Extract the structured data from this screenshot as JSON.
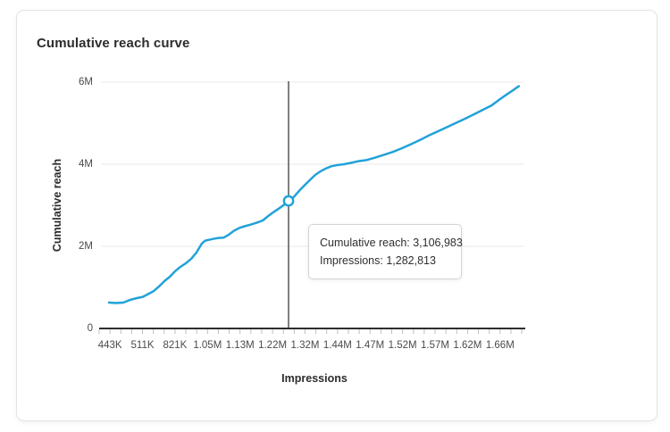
{
  "card": {
    "title": "Cumulative reach curve"
  },
  "chart_data": {
    "type": "line",
    "title": "Cumulative reach curve",
    "xlabel": "Impressions",
    "ylabel": "Cumulative reach",
    "x_tick_labels": [
      "443K",
      "511K",
      "821K",
      "1.05M",
      "1.13M",
      "1.22M",
      "1.32M",
      "1.44M",
      "1.47M",
      "1.52M",
      "1.57M",
      "1.62M",
      "1.66M"
    ],
    "y_tick_labels": [
      "0",
      "2M",
      "4M",
      "6M"
    ],
    "y_tick_values_M": [
      0,
      2,
      4,
      6
    ],
    "ylim_M": [
      0,
      6
    ],
    "grid": true,
    "series": [
      {
        "name": "Cumulative reach",
        "values_at_labels_M": [
          0.63,
          0.77,
          1.43,
          2.17,
          2.48,
          2.92,
          3.62,
          4.0,
          4.17,
          4.5,
          4.87,
          5.27,
          5.76
        ],
        "curve_points_frac_reachM": [
          [
            0.019,
            0.63
          ],
          [
            0.036,
            0.62
          ],
          [
            0.053,
            0.63
          ],
          [
            0.07,
            0.7
          ],
          [
            0.085,
            0.74
          ],
          [
            0.099,
            0.77
          ],
          [
            0.112,
            0.84
          ],
          [
            0.125,
            0.91
          ],
          [
            0.137,
            1.02
          ],
          [
            0.15,
            1.15
          ],
          [
            0.163,
            1.26
          ],
          [
            0.175,
            1.39
          ],
          [
            0.188,
            1.5
          ],
          [
            0.201,
            1.59
          ],
          [
            0.214,
            1.7
          ],
          [
            0.226,
            1.85
          ],
          [
            0.239,
            2.07
          ],
          [
            0.247,
            2.14
          ],
          [
            0.26,
            2.17
          ],
          [
            0.275,
            2.2
          ],
          [
            0.29,
            2.21
          ],
          [
            0.302,
            2.28
          ],
          [
            0.315,
            2.38
          ],
          [
            0.328,
            2.45
          ],
          [
            0.34,
            2.49
          ],
          [
            0.355,
            2.53
          ],
          [
            0.37,
            2.58
          ],
          [
            0.383,
            2.63
          ],
          [
            0.395,
            2.73
          ],
          [
            0.408,
            2.83
          ],
          [
            0.421,
            2.92
          ],
          [
            0.433,
            3.01
          ],
          [
            0.444,
            3.09
          ],
          [
            0.457,
            3.21
          ],
          [
            0.469,
            3.35
          ],
          [
            0.482,
            3.49
          ],
          [
            0.495,
            3.62
          ],
          [
            0.507,
            3.74
          ],
          [
            0.52,
            3.83
          ],
          [
            0.533,
            3.9
          ],
          [
            0.545,
            3.95
          ],
          [
            0.56,
            3.98
          ],
          [
            0.575,
            4.0
          ],
          [
            0.59,
            4.03
          ],
          [
            0.607,
            4.07
          ],
          [
            0.628,
            4.1
          ],
          [
            0.649,
            4.16
          ],
          [
            0.67,
            4.23
          ],
          [
            0.691,
            4.3
          ],
          [
            0.712,
            4.39
          ],
          [
            0.734,
            4.49
          ],
          [
            0.755,
            4.59
          ],
          [
            0.776,
            4.7
          ],
          [
            0.797,
            4.8
          ],
          [
            0.818,
            4.9
          ],
          [
            0.839,
            5.0
          ],
          [
            0.86,
            5.1
          ],
          [
            0.882,
            5.21
          ],
          [
            0.903,
            5.32
          ],
          [
            0.924,
            5.43
          ],
          [
            0.945,
            5.59
          ],
          [
            0.962,
            5.71
          ],
          [
            0.975,
            5.8
          ],
          [
            0.983,
            5.86
          ],
          [
            0.989,
            5.9
          ]
        ]
      }
    ],
    "highlight": {
      "x_frac": 0.444,
      "reach_M": 3.106983,
      "impressions": "1,282,813",
      "cumulative_reach": "3,106,983",
      "tooltip": {
        "lines": [
          "Cumulative reach: 3,106,983",
          "Impressions: 1,282,813"
        ]
      }
    },
    "legend": "none",
    "colors": {
      "line": "#21a2d8",
      "crosshair": "#4b4b4b",
      "grid": "#e9e9e9",
      "axis": "#2e2e2e",
      "tick": "#bdbdbd",
      "tick_text": "#4a4a4a",
      "title_text": "#2c2c2c"
    }
  }
}
